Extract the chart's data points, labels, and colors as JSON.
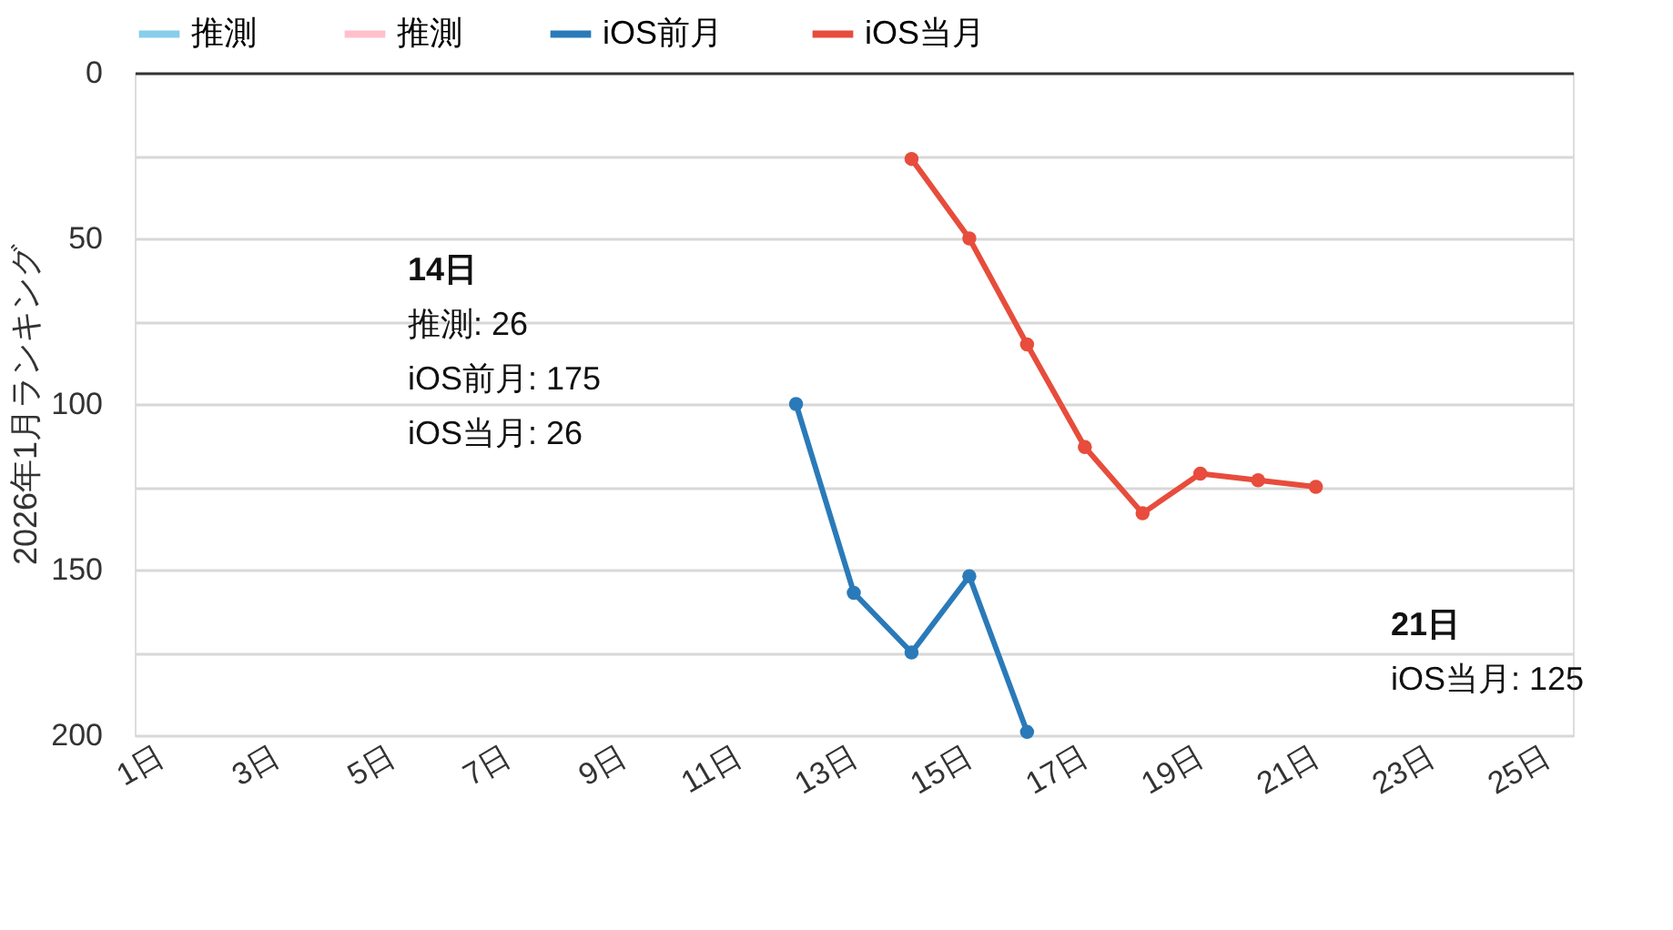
{
  "chart_data": {
    "type": "line",
    "ylabel": "2026年1月ランキング",
    "categories": [
      "1日",
      null,
      "3日",
      null,
      "5日",
      null,
      "7日",
      null,
      "9日",
      null,
      "11日",
      null,
      "13日",
      null,
      "15日",
      null,
      "17日",
      null,
      "19日",
      null,
      "21日",
      null,
      "23日",
      null,
      "25日"
    ],
    "series": [
      {
        "name": "推測",
        "color": "#87ceeb",
        "values": [
          null,
          null,
          null,
          null,
          null,
          null,
          null,
          null,
          null,
          null,
          null,
          null,
          null,
          null,
          null,
          null,
          null,
          null,
          null,
          null,
          null,
          null,
          null,
          null,
          null
        ]
      },
      {
        "name": "推測",
        "color": "#ffc0cb",
        "values": [
          null,
          null,
          null,
          null,
          null,
          null,
          null,
          null,
          null,
          null,
          null,
          null,
          null,
          null,
          null,
          null,
          null,
          null,
          null,
          null,
          null,
          null,
          null,
          null,
          null
        ]
      },
      {
        "name": "iOS前月",
        "color": "#2a7ab9",
        "values": [
          null,
          null,
          null,
          null,
          null,
          null,
          null,
          null,
          null,
          null,
          null,
          100,
          157,
          175,
          152,
          199,
          null,
          null,
          null,
          null,
          null,
          null,
          null,
          null,
          null
        ]
      },
      {
        "name": "iOS当月",
        "color": "#e74c3c",
        "values": [
          null,
          null,
          null,
          null,
          null,
          null,
          null,
          null,
          null,
          null,
          null,
          null,
          null,
          26,
          50,
          82,
          113,
          133,
          121,
          123,
          125,
          null,
          null,
          null,
          null
        ]
      }
    ],
    "ylim": [
      200,
      0
    ],
    "yticks": [
      0,
      {
        "value": 25,
        "label": null
      },
      50,
      {
        "value": 75,
        "label": null
      },
      100,
      {
        "value": 125,
        "label": null
      },
      150,
      {
        "value": 175,
        "label": null
      },
      200
    ],
    "grid": "y",
    "legend": "top",
    "marker": "circle",
    "line_style": "solid",
    "annotations": [
      "14日",
      "推測: 26",
      "iOS前月: 175",
      "iOS当月: 26",
      "21日",
      "iOS当月: 125"
    ]
  }
}
